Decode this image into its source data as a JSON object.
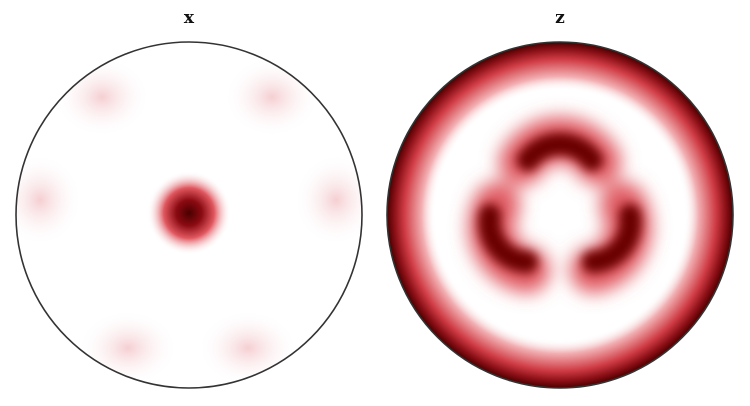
{
  "panels": [
    {
      "title": "x",
      "colormap": "white-to-dark-red"
    },
    {
      "title": "z",
      "colormap": "white-to-dark-red"
    }
  ],
  "colors": {
    "high": "#6b0000",
    "mid": "#d6454d",
    "low": "#ffffff",
    "outline": "#333333"
  }
}
